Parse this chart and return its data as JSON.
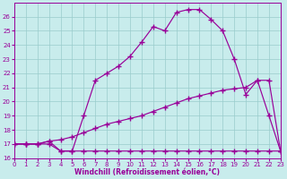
{
  "bg_color": "#c8ecec",
  "line_color": "#990099",
  "grid_color": "#99cccc",
  "ylim": [
    16,
    27
  ],
  "xlim": [
    0,
    23
  ],
  "yticks": [
    16,
    17,
    18,
    19,
    20,
    21,
    22,
    23,
    24,
    25,
    26
  ],
  "xticks": [
    0,
    1,
    2,
    3,
    4,
    5,
    6,
    7,
    8,
    9,
    10,
    11,
    12,
    13,
    14,
    15,
    16,
    17,
    18,
    19,
    20,
    21,
    22,
    23
  ],
  "xlabel": "Windchill (Refroidissement éolien,°C)",
  "curve1_x": [
    0,
    1,
    2,
    3,
    4,
    5,
    6,
    7,
    8,
    9,
    10,
    11,
    12,
    13,
    14,
    15,
    16,
    17,
    18,
    19,
    20,
    21,
    22,
    23
  ],
  "curve1_y": [
    17.0,
    17.0,
    17.0,
    17.0,
    16.5,
    16.5,
    16.5,
    16.5,
    16.5,
    16.5,
    16.5,
    16.5,
    16.5,
    16.5,
    16.5,
    16.5,
    16.5,
    16.5,
    16.5,
    16.5,
    16.5,
    16.5,
    16.5,
    16.5
  ],
  "curve2_x": [
    0,
    1,
    2,
    3,
    4,
    5,
    6,
    7,
    8,
    9,
    10,
    11,
    12,
    13,
    14,
    15,
    16,
    17,
    18,
    19,
    20,
    21,
    22,
    23
  ],
  "curve2_y": [
    17.0,
    17.0,
    17.0,
    17.2,
    17.3,
    17.5,
    17.8,
    18.1,
    18.4,
    18.6,
    18.8,
    19.0,
    19.3,
    19.6,
    19.9,
    20.2,
    20.4,
    20.6,
    20.8,
    20.9,
    21.0,
    21.5,
    21.5,
    16.5
  ],
  "curve3_x": [
    0,
    1,
    2,
    3,
    4,
    5,
    6,
    7,
    8,
    9,
    10,
    11,
    12,
    13,
    14,
    15,
    16,
    17,
    18,
    19,
    20,
    21,
    22,
    23
  ],
  "curve3_y": [
    17.0,
    17.0,
    17.0,
    17.2,
    16.5,
    16.5,
    19.0,
    21.5,
    22.0,
    22.5,
    23.2,
    24.2,
    25.3,
    25.0,
    26.3,
    26.5,
    26.5,
    25.8,
    25.0,
    23.0,
    20.5,
    21.5,
    19.0,
    16.5
  ]
}
